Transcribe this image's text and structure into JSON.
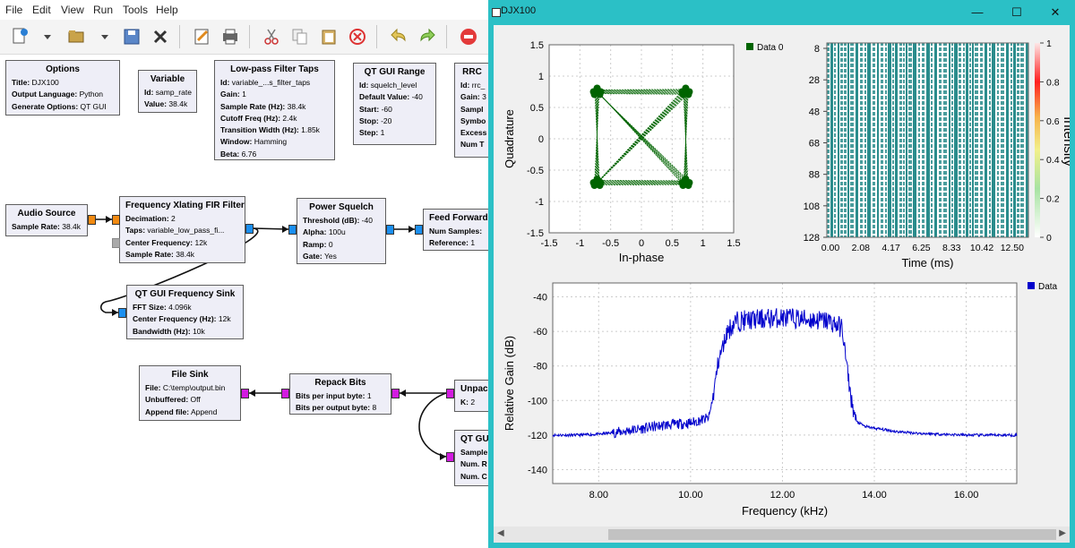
{
  "menubar": [
    "File",
    "Edit",
    "View",
    "Run",
    "Tools",
    "Help"
  ],
  "toolbar": [
    "new-icon",
    "dropdown-icon",
    "open-icon",
    "dropdown-icon",
    "save-icon",
    "close-icon",
    "edit-icon",
    "print-icon",
    "cut-icon",
    "copy-icon",
    "paste-icon",
    "delete-icon",
    "undo-icon",
    "redo-icon",
    "stop-icon"
  ],
  "blocks": {
    "options": {
      "title": "Options",
      "rows": [
        {
          "k": "Title:",
          "v": "DJX100"
        },
        {
          "k": "Output Language:",
          "v": "Python"
        },
        {
          "k": "Generate Options:",
          "v": "QT GUI"
        }
      ]
    },
    "variable": {
      "title": "Variable",
      "rows": [
        {
          "k": "Id:",
          "v": "samp_rate"
        },
        {
          "k": "Value:",
          "v": "38.4k"
        }
      ]
    },
    "lpf": {
      "title": "Low-pass Filter Taps",
      "rows": [
        {
          "k": "Id:",
          "v": "variable_...s_filter_taps"
        },
        {
          "k": "Gain:",
          "v": "1"
        },
        {
          "k": "Sample Rate (Hz):",
          "v": "38.4k"
        },
        {
          "k": "Cutoff Freq (Hz):",
          "v": "2.4k"
        },
        {
          "k": "Transition Width (Hz):",
          "v": "1.85k"
        },
        {
          "k": "Window:",
          "v": "Hamming"
        },
        {
          "k": "Beta:",
          "v": "6.76"
        }
      ]
    },
    "range": {
      "title": "QT GUI Range",
      "rows": [
        {
          "k": "Id:",
          "v": "squelch_level"
        },
        {
          "k": "Default Value:",
          "v": "-40"
        },
        {
          "k": "Start:",
          "v": "-60"
        },
        {
          "k": "Stop:",
          "v": "-20"
        },
        {
          "k": "Step:",
          "v": "1"
        }
      ]
    },
    "rrc": {
      "title": "RRC",
      "rows": [
        {
          "k": "Id:",
          "v": "rrc_"
        },
        {
          "k": "Gain:",
          "v": "3"
        },
        {
          "k": "Sampl",
          "v": ""
        },
        {
          "k": "Symbo",
          "v": ""
        },
        {
          "k": "Excess",
          "v": ""
        },
        {
          "k": "Num T",
          "v": ""
        }
      ]
    },
    "audio": {
      "title": "Audio Source",
      "rows": [
        {
          "k": "Sample Rate:",
          "v": "38.4k"
        }
      ]
    },
    "xlating": {
      "title": "Frequency Xlating FIR Filter",
      "rows": [
        {
          "k": "Decimation:",
          "v": "2"
        },
        {
          "k": "Taps:",
          "v": "variable_low_pass_fi..."
        },
        {
          "k": "Center Frequency:",
          "v": "12k"
        },
        {
          "k": "Sample Rate:",
          "v": "38.4k"
        }
      ]
    },
    "squelch": {
      "title": "Power Squelch",
      "rows": [
        {
          "k": "Threshold (dB):",
          "v": "-40"
        },
        {
          "k": "Alpha:",
          "v": "100u"
        },
        {
          "k": "Ramp:",
          "v": "0"
        },
        {
          "k": "Gate:",
          "v": "Yes"
        }
      ]
    },
    "feedfwd": {
      "title": "Feed Forward",
      "rows": [
        {
          "k": "Num Samples:",
          "v": ""
        },
        {
          "k": "Reference:",
          "v": "1"
        }
      ]
    },
    "freqsink": {
      "title": "QT GUI Frequency Sink",
      "rows": [
        {
          "k": "FFT Size:",
          "v": "4.096k"
        },
        {
          "k": "Center Frequency (Hz):",
          "v": "12k"
        },
        {
          "k": "Bandwidth (Hz):",
          "v": "10k"
        }
      ]
    },
    "filesink": {
      "title": "File Sink",
      "rows": [
        {
          "k": "File:",
          "v": "C:\\temp\\output.bin"
        },
        {
          "k": "Unbuffered:",
          "v": "Off"
        },
        {
          "k": "Append file:",
          "v": "Append"
        }
      ]
    },
    "repack": {
      "title": "Repack Bits",
      "rows": [
        {
          "k": "Bits per input byte:",
          "v": "1"
        },
        {
          "k": "Bits per output byte:",
          "v": "8"
        }
      ]
    },
    "unpack": {
      "title": "Unpac",
      "rows": [
        {
          "k": "K:",
          "v": "2"
        }
      ]
    },
    "qtgui2": {
      "title": "QT GU",
      "rows": [
        {
          "k": "Sample",
          "v": ""
        },
        {
          "k": "Num. R",
          "v": ""
        },
        {
          "k": "Num. C",
          "v": ""
        }
      ]
    }
  },
  "djx": {
    "title": "DJX100",
    "controls": [
      "minimize-icon",
      "maximize-icon",
      "close-icon"
    ],
    "minimize_glyph": "—",
    "maximize_glyph": "☐",
    "close_glyph": "✕"
  },
  "chart_data": [
    {
      "type": "scatter",
      "xlabel": "In-phase",
      "ylabel": "Quadrature",
      "xlim": [
        -1.5,
        1.5
      ],
      "ylim": [
        -1.5,
        1.5
      ],
      "xticks": [
        "-1.5",
        "-1",
        "-0.5",
        "0",
        "0.5",
        "1",
        "1.5"
      ],
      "yticks": [
        "1.5",
        "1",
        "0.5",
        "0",
        "-0.5",
        "-1",
        "-1.5"
      ],
      "grid": true,
      "legend": "top-right",
      "series": [
        {
          "name": "Data 0",
          "color": "#006400",
          "points": [
            [
              -0.72,
              0.75
            ],
            [
              0.72,
              0.75
            ],
            [
              -0.72,
              -0.7
            ],
            [
              0.72,
              -0.7
            ]
          ]
        }
      ]
    },
    {
      "type": "heatmap",
      "xlabel": "Time (ms)",
      "ylabel": "",
      "colorbar_label": "Intensity",
      "xticks": [
        "0.00",
        "2.08",
        "4.17",
        "6.25",
        "8.33",
        "10.42",
        "12.50"
      ],
      "yticks": [
        "8",
        "28",
        "48",
        "68",
        "88",
        "108",
        "128"
      ],
      "colorbar_ticks": [
        "1",
        "0.8",
        "0.6",
        "0.4",
        "0.2",
        "0"
      ],
      "colors": [
        "#ffffff",
        "#2a8c8c"
      ]
    },
    {
      "type": "line",
      "xlabel": "Frequency (kHz)",
      "ylabel": "Relative Gain (dB)",
      "xlim": [
        7,
        17.1
      ],
      "ylim": [
        -148,
        -32
      ],
      "xticks": [
        "8.00",
        "10.00",
        "12.00",
        "14.00",
        "16.00"
      ],
      "yticks": [
        "-40",
        "-60",
        "-80",
        "-100",
        "-120",
        "-140"
      ],
      "grid": true,
      "legend": "top-right",
      "series": [
        {
          "name": "Data",
          "color": "#0000cc",
          "points": [
            [
              7.0,
              -120
            ],
            [
              7.5,
              -120
            ],
            [
              8.0,
              -119.5
            ],
            [
              8.5,
              -118
            ],
            [
              9.0,
              -116
            ],
            [
              9.5,
              -114
            ],
            [
              10.0,
              -113
            ],
            [
              10.4,
              -110
            ],
            [
              10.5,
              -96
            ],
            [
              10.6,
              -78
            ],
            [
              10.8,
              -60
            ],
            [
              11.0,
              -54
            ],
            [
              11.5,
              -53
            ],
            [
              12.0,
              -52
            ],
            [
              12.5,
              -53
            ],
            [
              13.0,
              -54
            ],
            [
              13.3,
              -58
            ],
            [
              13.4,
              -80
            ],
            [
              13.5,
              -100
            ],
            [
              13.6,
              -112
            ],
            [
              13.8,
              -115
            ],
            [
              14.0,
              -116
            ],
            [
              14.5,
              -118
            ],
            [
              15.0,
              -119
            ],
            [
              16.0,
              -120
            ],
            [
              17.1,
              -120
            ]
          ]
        }
      ]
    }
  ]
}
